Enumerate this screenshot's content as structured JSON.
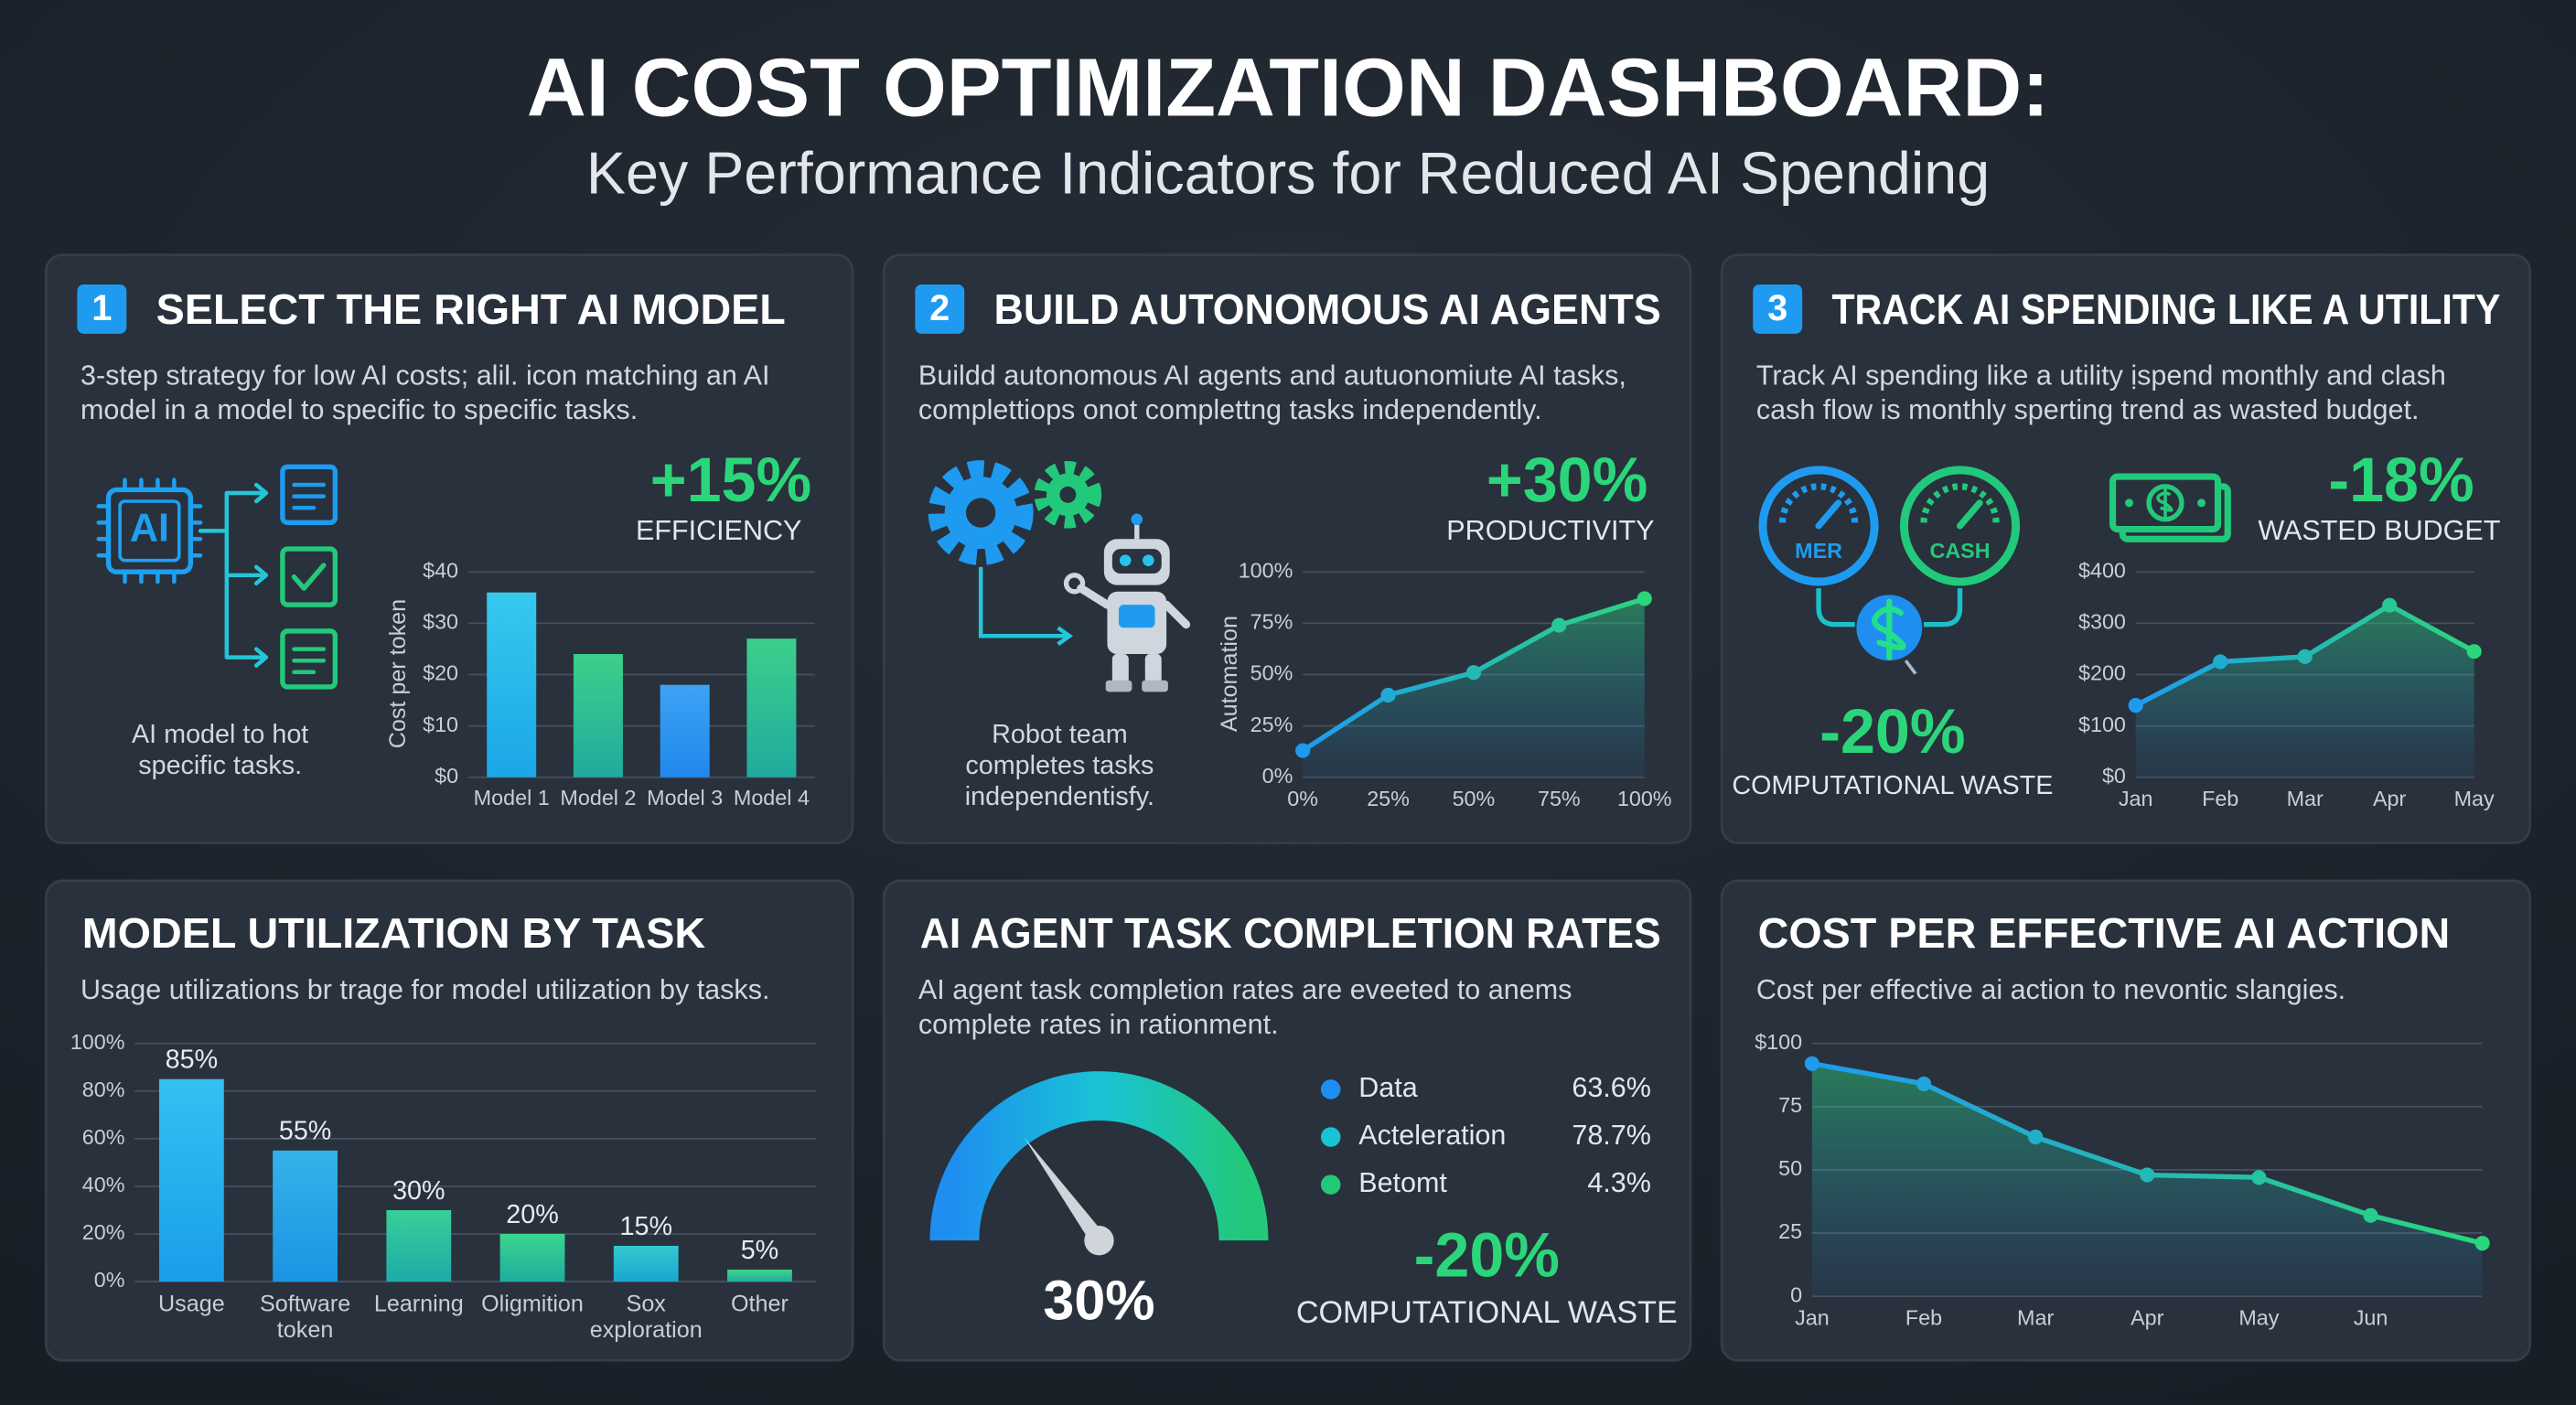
{
  "header": {
    "title": "AI COST OPTIMIZATION DASHBOARD:",
    "subtitle": "Key Performance Indicators for Reduced AI Spending"
  },
  "chart_data": [
    {
      "type": "bar",
      "number": "1",
      "title": "SELECT THE RIGHT AI MODEL",
      "subtitle": "3-step strategy for low AI costs; alil. icon matching an AI model in a model to specific to specific tasks.",
      "icon_labels": [
        "AI"
      ],
      "caption": "AI model to hot specific tasks.",
      "kpi": "+15%",
      "kpi_label": "EFFICIENCY",
      "y_label": "Cost per token",
      "categories": [
        "Model 1",
        "Model 2",
        "Model 3",
        "Model 4"
      ],
      "values": [
        36,
        24,
        18,
        27
      ],
      "colors": [
        "#19c3ea",
        "#22c97a",
        "#2196f3",
        "#22c97a"
      ],
      "ylim": [
        0,
        40
      ],
      "yticks": [
        {
          "value": 0,
          "label": "$0"
        },
        {
          "value": 10,
          "label": "$10"
        },
        {
          "value": 20,
          "label": "$20"
        },
        {
          "value": 30,
          "label": "$30"
        },
        {
          "value": 40,
          "label": "$40"
        }
      ],
      "grid": true
    },
    {
      "type": "line",
      "number": "2",
      "title": "BUILD AUTONOMOUS AI AGENTS",
      "subtitle": "Buildd autonomous AI agents and autuonomiute AI tasks, complettiops onot complettng tasks independently.",
      "caption": "Robot team completes tasks independentisfy.",
      "kpi": "+30%",
      "kpi_label": "PRODUCTIVITY",
      "y_label": "Automation",
      "x": [
        0,
        25,
        50,
        75,
        100
      ],
      "values": [
        13,
        40,
        51,
        74,
        87
      ],
      "colors": [
        "#1e9bf0",
        "#2bd67b"
      ],
      "area": true,
      "xlim": [
        0,
        100
      ],
      "xticks": [
        {
          "value": 0,
          "label": "0%"
        },
        {
          "value": 25,
          "label": "25%"
        },
        {
          "value": 50,
          "label": "50%"
        },
        {
          "value": 75,
          "label": "75%"
        },
        {
          "value": 100,
          "label": "100%"
        }
      ],
      "ylim": [
        0,
        100
      ],
      "yticks": [
        {
          "value": 0,
          "label": "0%"
        },
        {
          "value": 25,
          "label": "25%"
        },
        {
          "value": 50,
          "label": "50%"
        },
        {
          "value": 75,
          "label": "75%"
        },
        {
          "value": 100,
          "label": "100%"
        }
      ],
      "grid": true
    },
    {
      "type": "line",
      "number": "3",
      "title": "TRACK AI SPENDING LIKE A UTILITY",
      "subtitle": "Track AI spending like a utility ịspend monthly and clash cash flow is monthly sperting trend as wasted budget.",
      "icon_labels": [
        "MER",
        "CASH"
      ],
      "kpi": "-18%",
      "kpi_label": "WASTED BUDGET",
      "kpi2": "-20%",
      "kpi2_label": "COMPUTATIONAL WASTE",
      "categories": [
        "Jan",
        "Feb",
        "Mar",
        "Apr",
        "May"
      ],
      "values": [
        140,
        225,
        235,
        335,
        245
      ],
      "colors": [
        "#1e9bf0",
        "#2bd67b"
      ],
      "area": true,
      "ylim": [
        0,
        400
      ],
      "yticks": [
        {
          "value": 0,
          "label": "$0"
        },
        {
          "value": 100,
          "label": "$100"
        },
        {
          "value": 200,
          "label": "$200"
        },
        {
          "value": 300,
          "label": "$300"
        },
        {
          "value": 400,
          "label": "$400"
        }
      ],
      "grid": true
    },
    {
      "type": "bar",
      "title": "MODEL UTILIZATION BY TASK",
      "subtitle": "Usage utilizations br trage for model utilization by tasks.",
      "categories": [
        "Usage",
        "Software token",
        "Learning",
        "Oligmition",
        "Sox exploration",
        "Other"
      ],
      "values": [
        85,
        55,
        30,
        20,
        15,
        5
      ],
      "value_labels": [
        "85%",
        "55%",
        "30%",
        "20%",
        "15%",
        "5%"
      ],
      "colors": [
        "#17b8f0",
        "#1aa8e6",
        "#1ec98a",
        "#1fcf7c",
        "#18c2c8",
        "#22cf78"
      ],
      "ylim": [
        0,
        100
      ],
      "yticks": [
        {
          "value": 0,
          "label": "0%"
        },
        {
          "value": 20,
          "label": "20%"
        },
        {
          "value": 40,
          "label": "40%"
        },
        {
          "value": 60,
          "label": "60%"
        },
        {
          "value": 80,
          "label": "80%"
        },
        {
          "value": 100,
          "label": "100%"
        }
      ],
      "grid": true
    },
    {
      "type": "gauge",
      "title": "AI AGENT TASK COMPLETION RATES",
      "subtitle": "AI agent task completion rates are eveeted to anems complete rates in rationment.",
      "value": 30,
      "value_label": "30%",
      "ylim": [
        0,
        100
      ],
      "categories": [
        "Data",
        "Acteleration",
        "Betomt"
      ],
      "values": [
        63.6,
        78.7,
        4.3
      ],
      "value_labels": [
        "63.6%",
        "78.7%",
        "4.3%"
      ],
      "colors": [
        "#1e8ff0",
        "#19c3d6",
        "#22c97a"
      ],
      "kpi": "-20%",
      "kpi_label": "COMPUTATIONAL WASTE"
    },
    {
      "type": "line",
      "title": "COST PER EFFECTIVE AI ACTION",
      "subtitle": "Cost per effective ai action to nevontic slangies.",
      "categories": [
        "Jan",
        "Feb",
        "Mar",
        "Apr",
        "May",
        "Jun",
        null
      ],
      "values": [
        92,
        84,
        63,
        48,
        47,
        32,
        21
      ],
      "colors": [
        "#1e9bf0",
        "#2bd67b"
      ],
      "area": true,
      "ylim": [
        0,
        100
      ],
      "yticks": [
        0,
        25,
        50,
        75,
        {
          "value": 100,
          "label": "$100"
        }
      ],
      "grid": true
    }
  ]
}
